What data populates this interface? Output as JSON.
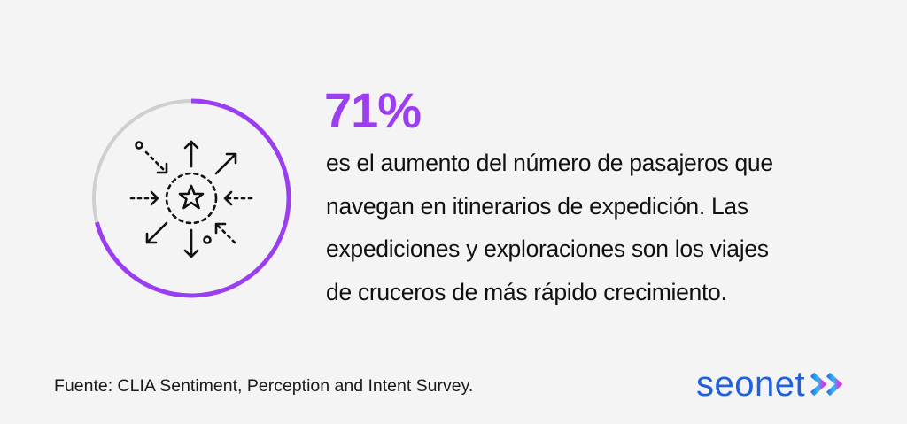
{
  "stat": {
    "value": "71%",
    "description": "es el aumento del número de pasajeros que\nnavegan en itinerarios de expedición.  Las\nexpediciones y exploraciones son los viajes\nde cruceros de más rápido crecimiento.",
    "progress_fraction": 0.71
  },
  "source": "Fuente: CLIA Sentiment, Perception and Intent Survey.",
  "brand": {
    "name": "seonet"
  },
  "colors": {
    "accent": "#9b3df0",
    "ring_track": "#cfcfcf",
    "brand_blue": "#1f5fe0",
    "arrow_blue": "#2f6ff2",
    "arrow_cyan": "#27c0f0",
    "arrow_magenta": "#d23ae8"
  },
  "icon": {
    "name": "star-burst-arrows-icon"
  }
}
